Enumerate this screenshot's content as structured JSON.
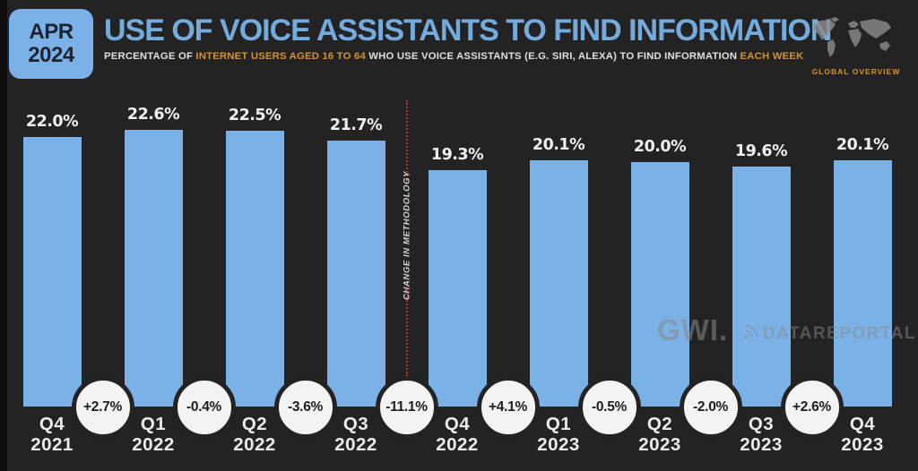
{
  "slide": {
    "badge": {
      "month": "APR",
      "year": "2024"
    },
    "title": "USE OF VOICE ASSISTANTS TO FIND INFORMATION",
    "subtitle": {
      "p1": "PERCENTAGE OF ",
      "h1": "INTERNET USERS AGED 16 TO 64",
      "p2": " WHO USE VOICE ASSISTANTS (E.G. SIRI, ALEXA) TO FIND INFORMATION ",
      "h2": "EACH WEEK"
    },
    "region_label": "GLOBAL OVERVIEW",
    "watermarks": {
      "gwi": "GWI.",
      "datareportal": "DATAREPORTAL"
    }
  },
  "colors": {
    "background": "#232323",
    "bar_blue": "#7ab2e8",
    "title_blue": "#73abdd",
    "highlight_orange": "#cf9434",
    "annotation_red": "#a83a2f",
    "circle_white": "#f3f3f3"
  },
  "chart_data": {
    "type": "bar",
    "unit": "%",
    "title": "USE OF VOICE ASSISTANTS TO FIND INFORMATION",
    "categories": [
      "Q4 2021",
      "Q1 2022",
      "Q2 2022",
      "Q3 2022",
      "Q4 2022",
      "Q1 2023",
      "Q2 2023",
      "Q3 2023",
      "Q4 2023"
    ],
    "values": [
      22.0,
      22.6,
      22.5,
      21.7,
      19.3,
      20.1,
      20.0,
      19.6,
      20.1
    ],
    "value_labels": [
      "22.0%",
      "22.6%",
      "22.5%",
      "21.7%",
      "19.3%",
      "20.1%",
      "20.0%",
      "19.6%",
      "20.1%"
    ],
    "qoq_change_labels": [
      "+2.7%",
      "-0.4%",
      "-3.6%",
      "-11.1%",
      "+4.1%",
      "-0.5%",
      "-2.0%",
      "+2.6%"
    ],
    "annotation": "CHANGE IN METHODOLOGY",
    "annotation_after_index": 3,
    "ylim": [
      0,
      24
    ],
    "grid": false,
    "legend": false
  }
}
